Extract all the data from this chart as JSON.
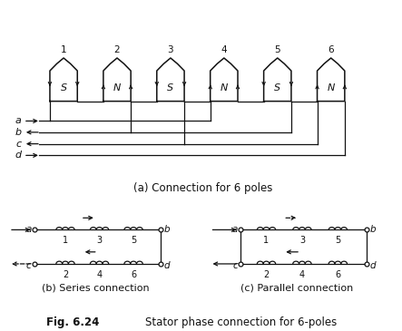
{
  "title": "Fig. 6.24   Stator phase connection for 6-poles",
  "bg_color": "#ffffff",
  "text_color": "#1a1a1a",
  "pole_labels": [
    "1",
    "2",
    "3",
    "4",
    "5",
    "6"
  ],
  "pole_types": [
    "S",
    "N",
    "S",
    "N",
    "S",
    "N"
  ],
  "line_color": "#111111",
  "caption_a": "(a) Connection for 6 poles",
  "caption_b": "(b) Series connection",
  "caption_c": "(c) Parallel connection"
}
